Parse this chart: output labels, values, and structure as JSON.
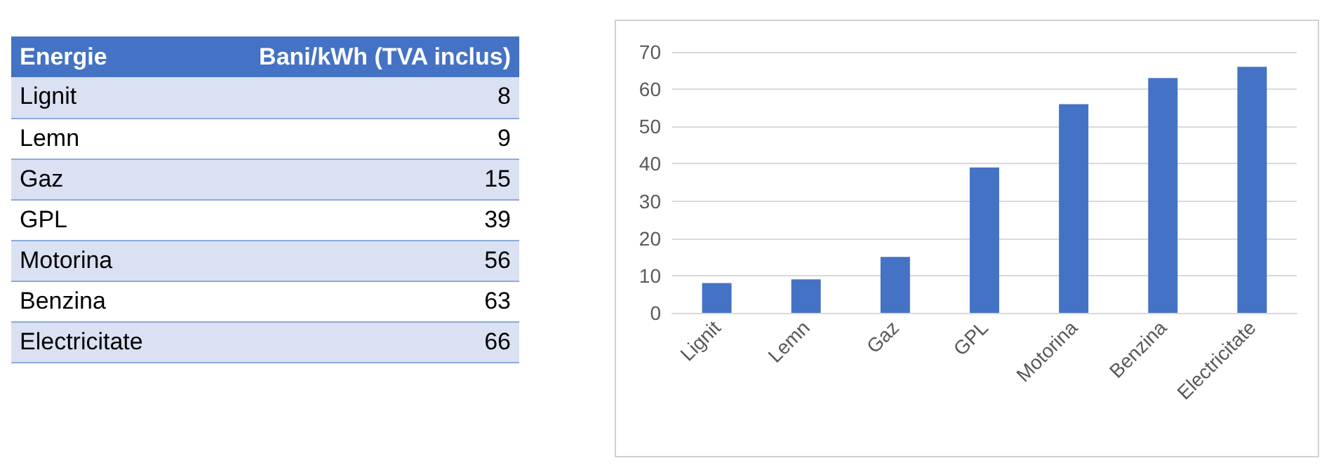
{
  "chart_data": [
    {
      "type": "other",
      "annotations": [
        "Energie",
        "Bani/kWh (TVA inclus)"
      ],
      "categories": [
        "Lignit",
        "Lemn",
        "Gaz",
        "GPL",
        "Motorina",
        "Benzina",
        "Electricitate"
      ],
      "values": [
        8,
        9,
        15,
        39,
        56,
        63,
        66
      ],
      "data_labels": true
    },
    {
      "type": "bar",
      "categories": [
        "Lignit",
        "Lemn",
        "Gaz",
        "GPL",
        "Motorina",
        "Benzina",
        "Electricitate"
      ],
      "values": [
        8,
        9,
        15,
        39,
        56,
        63,
        66
      ],
      "color": "#4472c4",
      "ylim": [
        0,
        70
      ],
      "yticks": [
        0,
        10,
        20,
        30,
        40,
        50,
        60,
        70
      ],
      "grid": "y"
    }
  ]
}
